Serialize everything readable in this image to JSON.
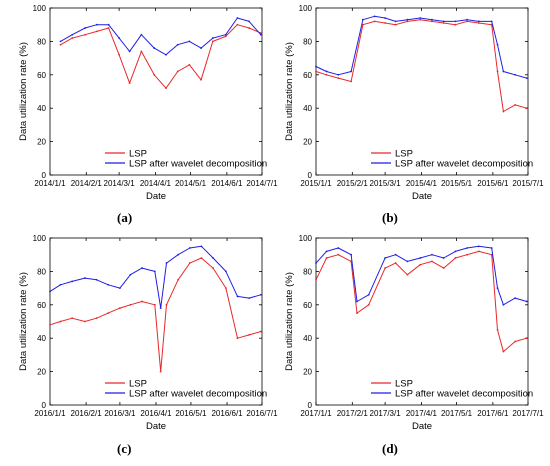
{
  "colors": {
    "lsp": "#e8282b",
    "wavelet": "#1f1fe6",
    "axis": "#000000",
    "background": "#ffffff"
  },
  "figure": {
    "panels": [
      {
        "label": "(a)"
      },
      {
        "label": "(b)"
      },
      {
        "label": "(c)"
      },
      {
        "label": "(d)"
      }
    ]
  },
  "chart_data": [
    {
      "type": "line",
      "xlabel": "Date",
      "ylabel": "Data utilization rate (%)",
      "ylim": [
        0,
        100
      ],
      "yticks": [
        0,
        20,
        40,
        60,
        80,
        100
      ],
      "x_tick_labels": [
        "2014/1/1",
        "2014/2/1",
        "2014/3/1",
        "2014/4/1",
        "2014/5/1",
        "2014/6/1",
        "2014/7/1"
      ],
      "legend": {
        "position": "bottom-left",
        "entries": [
          "LSP",
          "LSP after wavelet decomposition"
        ]
      },
      "x": [
        "2014/1/10",
        "2014/1/20",
        "2014/1/31",
        "2014/2/10",
        "2014/2/20",
        "2014/3/1",
        "2014/3/10",
        "2014/3/20",
        "2014/3/31",
        "2014/4/10",
        "2014/4/20",
        "2014/4/30",
        "2014/5/10",
        "2014/5/20",
        "2014/5/31",
        "2014/6/10",
        "2014/6/20",
        "2014/6/30"
      ],
      "series": [
        {
          "name": "LSP",
          "values": [
            78,
            82,
            84,
            86,
            88,
            72,
            55,
            74,
            60,
            52,
            62,
            66,
            57,
            80,
            83,
            90,
            88,
            85
          ]
        },
        {
          "name": "LSP after wavelet decomposition",
          "values": [
            80,
            84,
            88,
            90,
            90,
            82,
            74,
            84,
            76,
            72,
            78,
            80,
            76,
            82,
            84,
            94,
            92,
            84
          ]
        }
      ]
    },
    {
      "type": "line",
      "xlabel": "Date",
      "ylabel": "Data utilization rate (%)",
      "ylim": [
        0,
        100
      ],
      "yticks": [
        0,
        20,
        40,
        60,
        80,
        100
      ],
      "x_tick_labels": [
        "2015/1/1",
        "2015/2/1",
        "2015/3/1",
        "2015/4/1",
        "2015/5/1",
        "2015/6/1",
        "2015/7/1"
      ],
      "legend": {
        "position": "bottom-left",
        "entries": [
          "LSP",
          "LSP after wavelet decomposition"
        ]
      },
      "x": [
        "2015/1/1",
        "2015/1/10",
        "2015/1/20",
        "2015/1/31",
        "2015/2/10",
        "2015/2/20",
        "2015/3/1",
        "2015/3/10",
        "2015/3/20",
        "2015/3/31",
        "2015/4/10",
        "2015/4/20",
        "2015/4/30",
        "2015/5/10",
        "2015/5/20",
        "2015/5/31",
        "2015/6/5",
        "2015/6/10",
        "2015/6/20",
        "2015/6/30"
      ],
      "series": [
        {
          "name": "LSP",
          "values": [
            62,
            60,
            58,
            56,
            90,
            92,
            91,
            90,
            92,
            93,
            92,
            91,
            90,
            92,
            91,
            90,
            62,
            38,
            42,
            40
          ]
        },
        {
          "name": "LSP after wavelet decomposition",
          "values": [
            65,
            62,
            60,
            62,
            93,
            95,
            94,
            92,
            93,
            94,
            93,
            92,
            92,
            93,
            92,
            92,
            78,
            62,
            60,
            58
          ]
        }
      ]
    },
    {
      "type": "line",
      "xlabel": "Date",
      "ylabel": "Data utilization rate (%)",
      "ylim": [
        0,
        100
      ],
      "yticks": [
        0,
        20,
        40,
        60,
        80,
        100
      ],
      "x_tick_labels": [
        "2016/1/1",
        "2016/2/1",
        "2016/3/1",
        "2016/4/1",
        "2016/5/1",
        "2016/6/1",
        "2016/7/1"
      ],
      "legend": {
        "position": "bottom-left",
        "entries": [
          "LSP",
          "LSP after wavelet decomposition"
        ]
      },
      "x": [
        "2016/1/1",
        "2016/1/10",
        "2016/1/20",
        "2016/1/31",
        "2016/2/10",
        "2016/2/20",
        "2016/3/1",
        "2016/3/10",
        "2016/3/20",
        "2016/3/31",
        "2016/4/5",
        "2016/4/10",
        "2016/4/20",
        "2016/4/30",
        "2016/5/10",
        "2016/5/20",
        "2016/5/31",
        "2016/6/10",
        "2016/6/20",
        "2016/6/30"
      ],
      "series": [
        {
          "name": "LSP",
          "values": [
            48,
            50,
            52,
            50,
            52,
            55,
            58,
            60,
            62,
            60,
            20,
            60,
            75,
            85,
            88,
            82,
            70,
            40,
            42,
            44
          ]
        },
        {
          "name": "LSP after wavelet decomposition",
          "values": [
            68,
            72,
            74,
            76,
            75,
            72,
            70,
            78,
            82,
            80,
            58,
            85,
            90,
            94,
            95,
            88,
            80,
            65,
            64,
            66
          ]
        }
      ]
    },
    {
      "type": "line",
      "xlabel": "Date",
      "ylabel": "Data utilization rate (%)",
      "ylim": [
        0,
        100
      ],
      "yticks": [
        0,
        20,
        40,
        60,
        80,
        100
      ],
      "x_tick_labels": [
        "2017/1/1",
        "2017/2/1",
        "2017/3/1",
        "2017/4/1",
        "2017/5/1",
        "2017/6/1",
        "2017/7/1"
      ],
      "legend": {
        "position": "bottom-left",
        "entries": [
          "LSP",
          "LSP after wavelet decomposition"
        ]
      },
      "x": [
        "2017/1/1",
        "2017/1/10",
        "2017/1/20",
        "2017/1/31",
        "2017/2/5",
        "2017/2/15",
        "2017/3/1",
        "2017/3/10",
        "2017/3/20",
        "2017/3/31",
        "2017/4/10",
        "2017/4/20",
        "2017/4/30",
        "2017/5/10",
        "2017/5/20",
        "2017/5/31",
        "2017/6/5",
        "2017/6/10",
        "2017/6/20",
        "2017/6/30"
      ],
      "series": [
        {
          "name": "LSP",
          "values": [
            75,
            88,
            90,
            86,
            55,
            60,
            82,
            85,
            78,
            84,
            86,
            82,
            88,
            90,
            92,
            90,
            45,
            32,
            38,
            40
          ]
        },
        {
          "name": "LSP after wavelet decomposition",
          "values": [
            85,
            92,
            94,
            90,
            62,
            66,
            88,
            90,
            86,
            88,
            90,
            88,
            92,
            94,
            95,
            94,
            70,
            60,
            64,
            62
          ]
        }
      ]
    }
  ]
}
